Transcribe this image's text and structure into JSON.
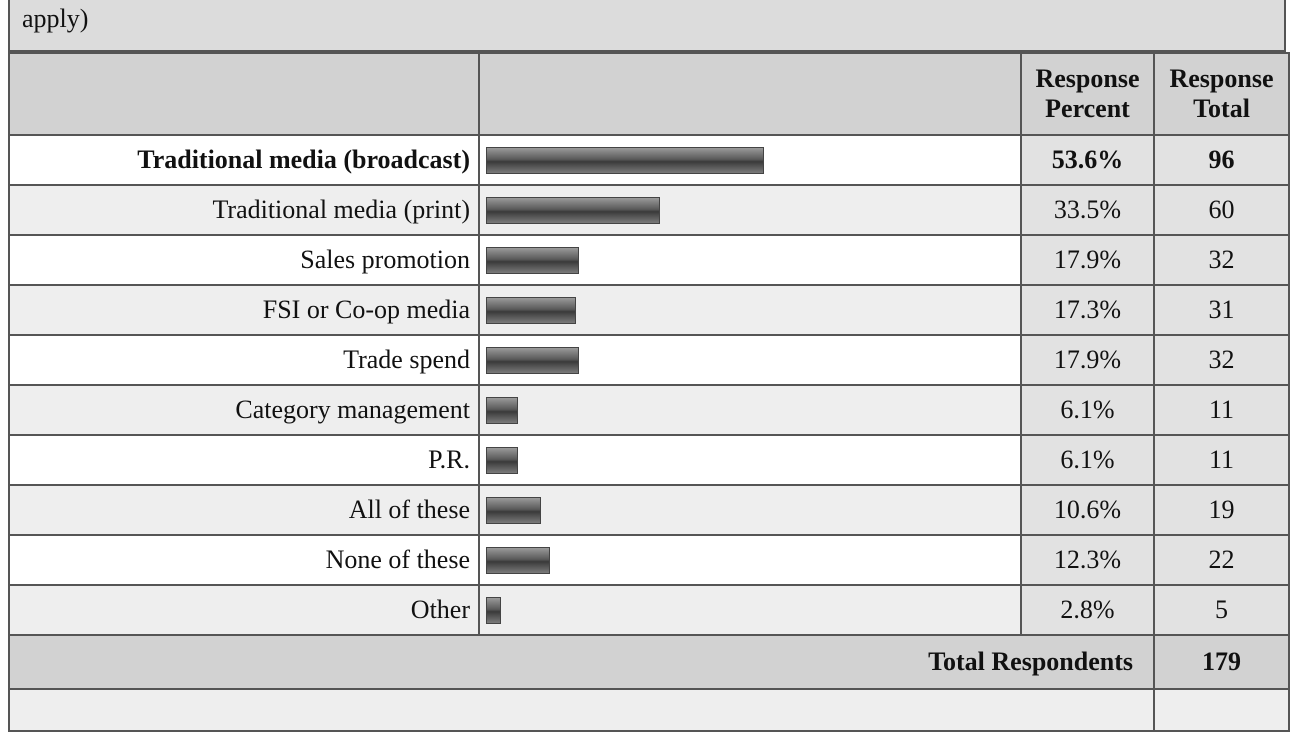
{
  "question_tail": "apply)",
  "table": {
    "header": [
      "Response Percent",
      "Response Total"
    ],
    "rows": [
      {
        "label": "Traditional media (broadcast)",
        "percent": 53.6,
        "percent_label": "53.6%",
        "total": 96
      },
      {
        "label": "Traditional media (print)",
        "percent": 33.5,
        "percent_label": "33.5%",
        "total": 60
      },
      {
        "label": "Sales promotion",
        "percent": 17.9,
        "percent_label": "17.9%",
        "total": 32
      },
      {
        "label": "FSI or Co-op media",
        "percent": 17.3,
        "percent_label": "17.3%",
        "total": 31
      },
      {
        "label": "Trade spend",
        "percent": 17.9,
        "percent_label": "17.9%",
        "total": 32
      },
      {
        "label": "Category management",
        "percent": 6.1,
        "percent_label": "6.1%",
        "total": 11
      },
      {
        "label": "P.R.",
        "percent": 6.1,
        "percent_label": "6.1%",
        "total": 11
      },
      {
        "label": "All of these",
        "percent": 10.6,
        "percent_label": "10.6%",
        "total": 19
      },
      {
        "label": "None of these",
        "percent": 12.3,
        "percent_label": "12.3%",
        "total": 22
      },
      {
        "label": "Other",
        "percent": 2.8,
        "percent_label": "2.8%",
        "total": 5
      }
    ],
    "total": {
      "label": "Total Respondents",
      "value": 179
    }
  }
}
